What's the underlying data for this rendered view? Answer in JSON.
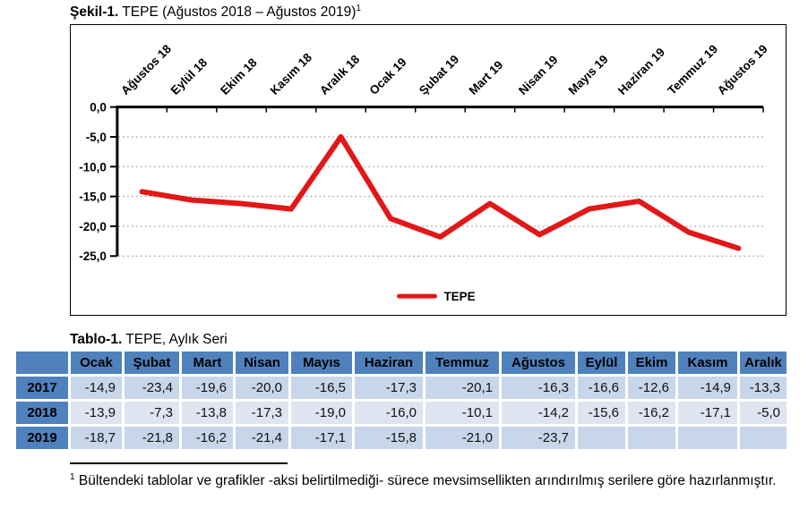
{
  "figure": {
    "title_bold": "Şekil-1.",
    "title_rest": " TEPE (Ağustos 2018 – Ağustos 2019)",
    "title_superscript": "1"
  },
  "chart_data": {
    "type": "line",
    "title": "TEPE (Ağustos 2018 – Ağustos 2019)",
    "categories": [
      "Ağustos 18",
      "Eylül 18",
      "Ekim 18",
      "Kasım 18",
      "Aralık 18",
      "Ocak 19",
      "Şubat 19",
      "Mart 19",
      "Nisan 19",
      "Mayıs 19",
      "Haziran 19",
      "Temmuz 19",
      "Ağustos 19"
    ],
    "series": [
      {
        "name": "TEPE",
        "values": [
          -14.2,
          -15.6,
          -16.2,
          -17.1,
          -5.0,
          -18.7,
          -21.8,
          -16.2,
          -21.4,
          -17.1,
          -15.8,
          -21.0,
          -23.7
        ]
      }
    ],
    "ylim": [
      -25,
      0
    ],
    "ytick_step": 5,
    "ytick_labels": [
      "0,0",
      "-5,0",
      "-10,0",
      "-15,0",
      "-20,0",
      "-25,0"
    ],
    "grid": "horizontal-dotted",
    "legend_position": "bottom-center",
    "legend_label": "TEPE"
  },
  "table": {
    "title_bold": "Tablo-1.",
    "title_rest": " TEPE, Aylık Seri",
    "columns": [
      "",
      "Ocak",
      "Şubat",
      "Mart",
      "Nisan",
      "Mayıs",
      "Haziran",
      "Temmuz",
      "Ağustos",
      "Eylül",
      "Ekim",
      "Kasım",
      "Aralık"
    ],
    "rows": [
      {
        "year": "2017",
        "values": [
          "-14,9",
          "-23,4",
          "-19,6",
          "-20,0",
          "-16,5",
          "-17,3",
          "-20,1",
          "-16,3",
          "-16,6",
          "-12,6",
          "-14,9",
          "-13,3"
        ]
      },
      {
        "year": "2018",
        "values": [
          "-13,9",
          "-7,3",
          "-13,8",
          "-17,3",
          "-19,0",
          "-16,0",
          "-10,1",
          "-14,2",
          "-15,6",
          "-16,2",
          "-17,1",
          "-5,0"
        ]
      },
      {
        "year": "2019",
        "values": [
          "-18,7",
          "-21,8",
          "-16,2",
          "-21,4",
          "-17,1",
          "-15,8",
          "-21,0",
          "-23,7",
          "",
          "",
          "",
          ""
        ]
      }
    ]
  },
  "footnote": {
    "superscript": "1",
    "text": " Bültendeki tablolar ve grafikler -aksi belirtilmediği- sürece mevsimsellikten arındırılmış serilere göre hazırlanmıştır."
  },
  "colors": {
    "accent_blue": "#4F81BD",
    "row_light_blue": "#C8D6EA",
    "row_pale_blue": "#DEE5F1",
    "line_red": "#E21717",
    "gridline_gray": "#9a9a9a"
  }
}
